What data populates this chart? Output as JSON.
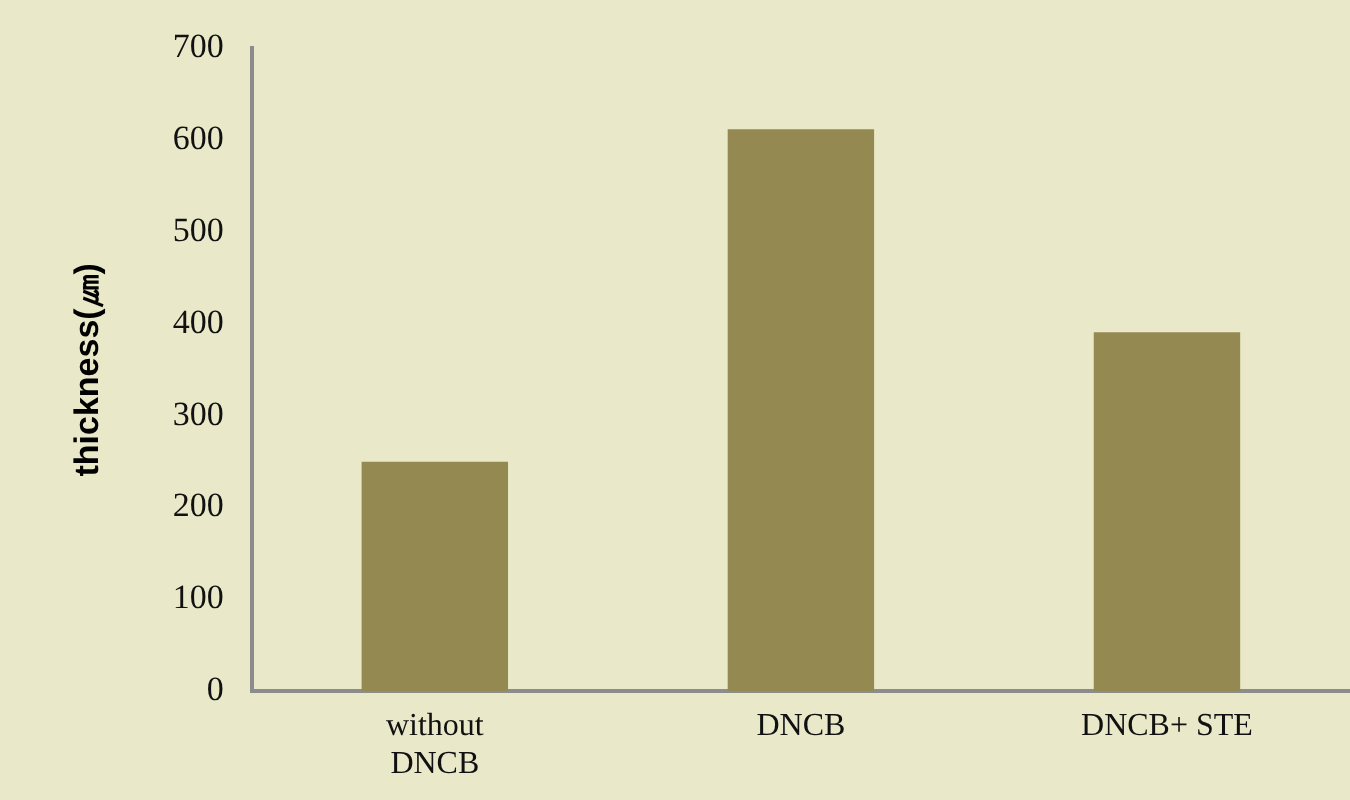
{
  "chart_data": {
    "type": "bar",
    "ylabel": "thickness(㎛)",
    "categories": [
      "without DNCB",
      "DNCB",
      "DNCB+ STE"
    ],
    "values": [
      250,
      612,
      391
    ],
    "color": "#938951",
    "ylim": [
      0,
      700
    ],
    "yticks": [
      0,
      100,
      200,
      300,
      400,
      500,
      600,
      700
    ],
    "grid": false,
    "legend": false
  }
}
